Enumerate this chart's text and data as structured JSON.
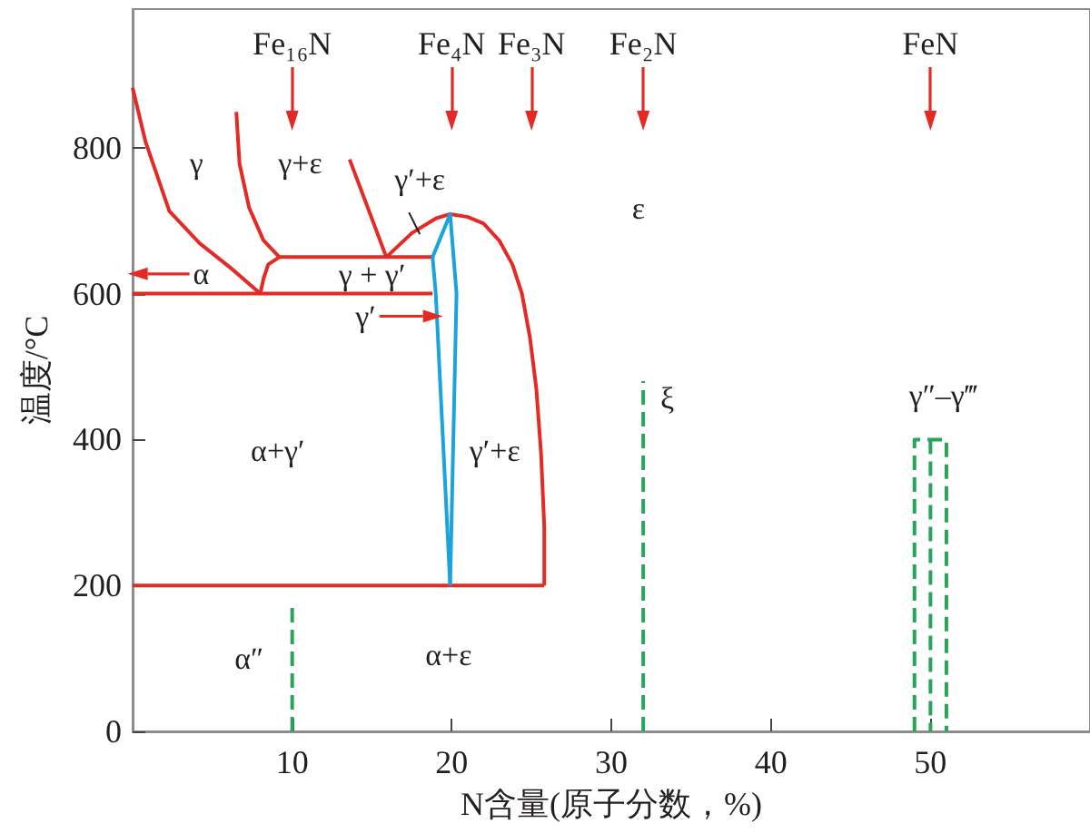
{
  "chart_data": {
    "type": "line",
    "xlabel": "N含量(原子分数，%)",
    "ylabel": "温度/°C",
    "xlim": [
      0,
      60
    ],
    "xticks": [
      10,
      20,
      30,
      40,
      50
    ],
    "ylim": [
      0,
      990
    ],
    "yticks": [
      0,
      200,
      400,
      600,
      800
    ],
    "grid": false,
    "marker": "none",
    "line_style": "solid",
    "series": [
      {
        "color": "#e42a25",
        "x": [
          0,
          0.8,
          2.3,
          4.2,
          6.1,
          8
        ],
        "values": [
          882,
          809,
          713,
          669,
          636,
          600
        ]
      },
      {
        "color": "#e42a25",
        "x": [
          6.5,
          6.7,
          7.3,
          8.2,
          9.2,
          18.8
        ],
        "values": [
          849,
          778,
          718,
          673,
          650,
          650
        ]
      },
      {
        "color": "#e42a25",
        "x": [
          9.2,
          8.5,
          8.2,
          8
        ],
        "values": [
          650,
          640,
          620,
          600
        ]
      },
      {
        "color": "#e42a25",
        "x": [
          13.6,
          15.9
        ],
        "values": [
          784,
          650
        ]
      },
      {
        "color": "#e42a25",
        "x": [
          15.9,
          17.5,
          19,
          19.9,
          21,
          22,
          23,
          23.8,
          24.4,
          24.9,
          25.3,
          25.6,
          25.8,
          25.8
        ],
        "values": [
          650,
          683,
          703,
          709,
          705,
          696,
          672,
          640,
          600,
          540,
          470,
          380,
          280,
          200
        ]
      },
      {
        "color": "#e42a25",
        "x": [
          0,
          18.8
        ],
        "values": [
          600,
          600
        ]
      },
      {
        "color": "#e42a25",
        "x": [
          0,
          25.8
        ],
        "values": [
          200,
          200
        ]
      },
      {
        "color": "#1aa3dc",
        "x": [
          18.8,
          19,
          19.9
        ],
        "values": [
          650,
          600,
          200
        ]
      },
      {
        "color": "#1aa3dc",
        "x": [
          18.8,
          19.9,
          20.3,
          20.1,
          19.9
        ],
        "values": [
          650,
          709,
          600,
          400,
          200
        ]
      },
      {
        "color": "#27a65a",
        "line_style": "dashed",
        "x": [
          10,
          10
        ],
        "values": [
          0,
          175
        ]
      },
      {
        "color": "#27a65a",
        "line_style": "dashed",
        "x": [
          32,
          32
        ],
        "values": [
          0,
          480
        ]
      },
      {
        "color": "#27a65a",
        "line_style": "dashed",
        "x": [
          49,
          49,
          51,
          51
        ],
        "values": [
          0,
          400,
          400,
          0
        ]
      },
      {
        "color": "#27a65a",
        "line_style": "dashed",
        "x": [
          50,
          50
        ],
        "values": [
          400,
          0
        ]
      }
    ],
    "ref_lines": [
      {
        "axis": "x",
        "value": 10,
        "label": "Fe₁₆N",
        "color": "#e42a25"
      },
      {
        "axis": "x",
        "value": 20,
        "label": "Fe₄N",
        "color": "#e42a25"
      },
      {
        "axis": "x",
        "value": 25,
        "label": "Fe₃N",
        "color": "#e42a25"
      },
      {
        "axis": "x",
        "value": 32,
        "label": "Fe₂N",
        "color": "#e42a25"
      },
      {
        "axis": "x",
        "value": 50,
        "label": "FeN",
        "color": "#e42a25"
      }
    ],
    "annotations": [
      "γ",
      "γ+ε",
      "γ′+ε",
      "ε",
      "α",
      "γ + γ′",
      "γ′",
      "α+γ′",
      "γ′+ε",
      "ξ",
      "γ″–γ‴",
      "α″",
      "α+ε"
    ]
  }
}
